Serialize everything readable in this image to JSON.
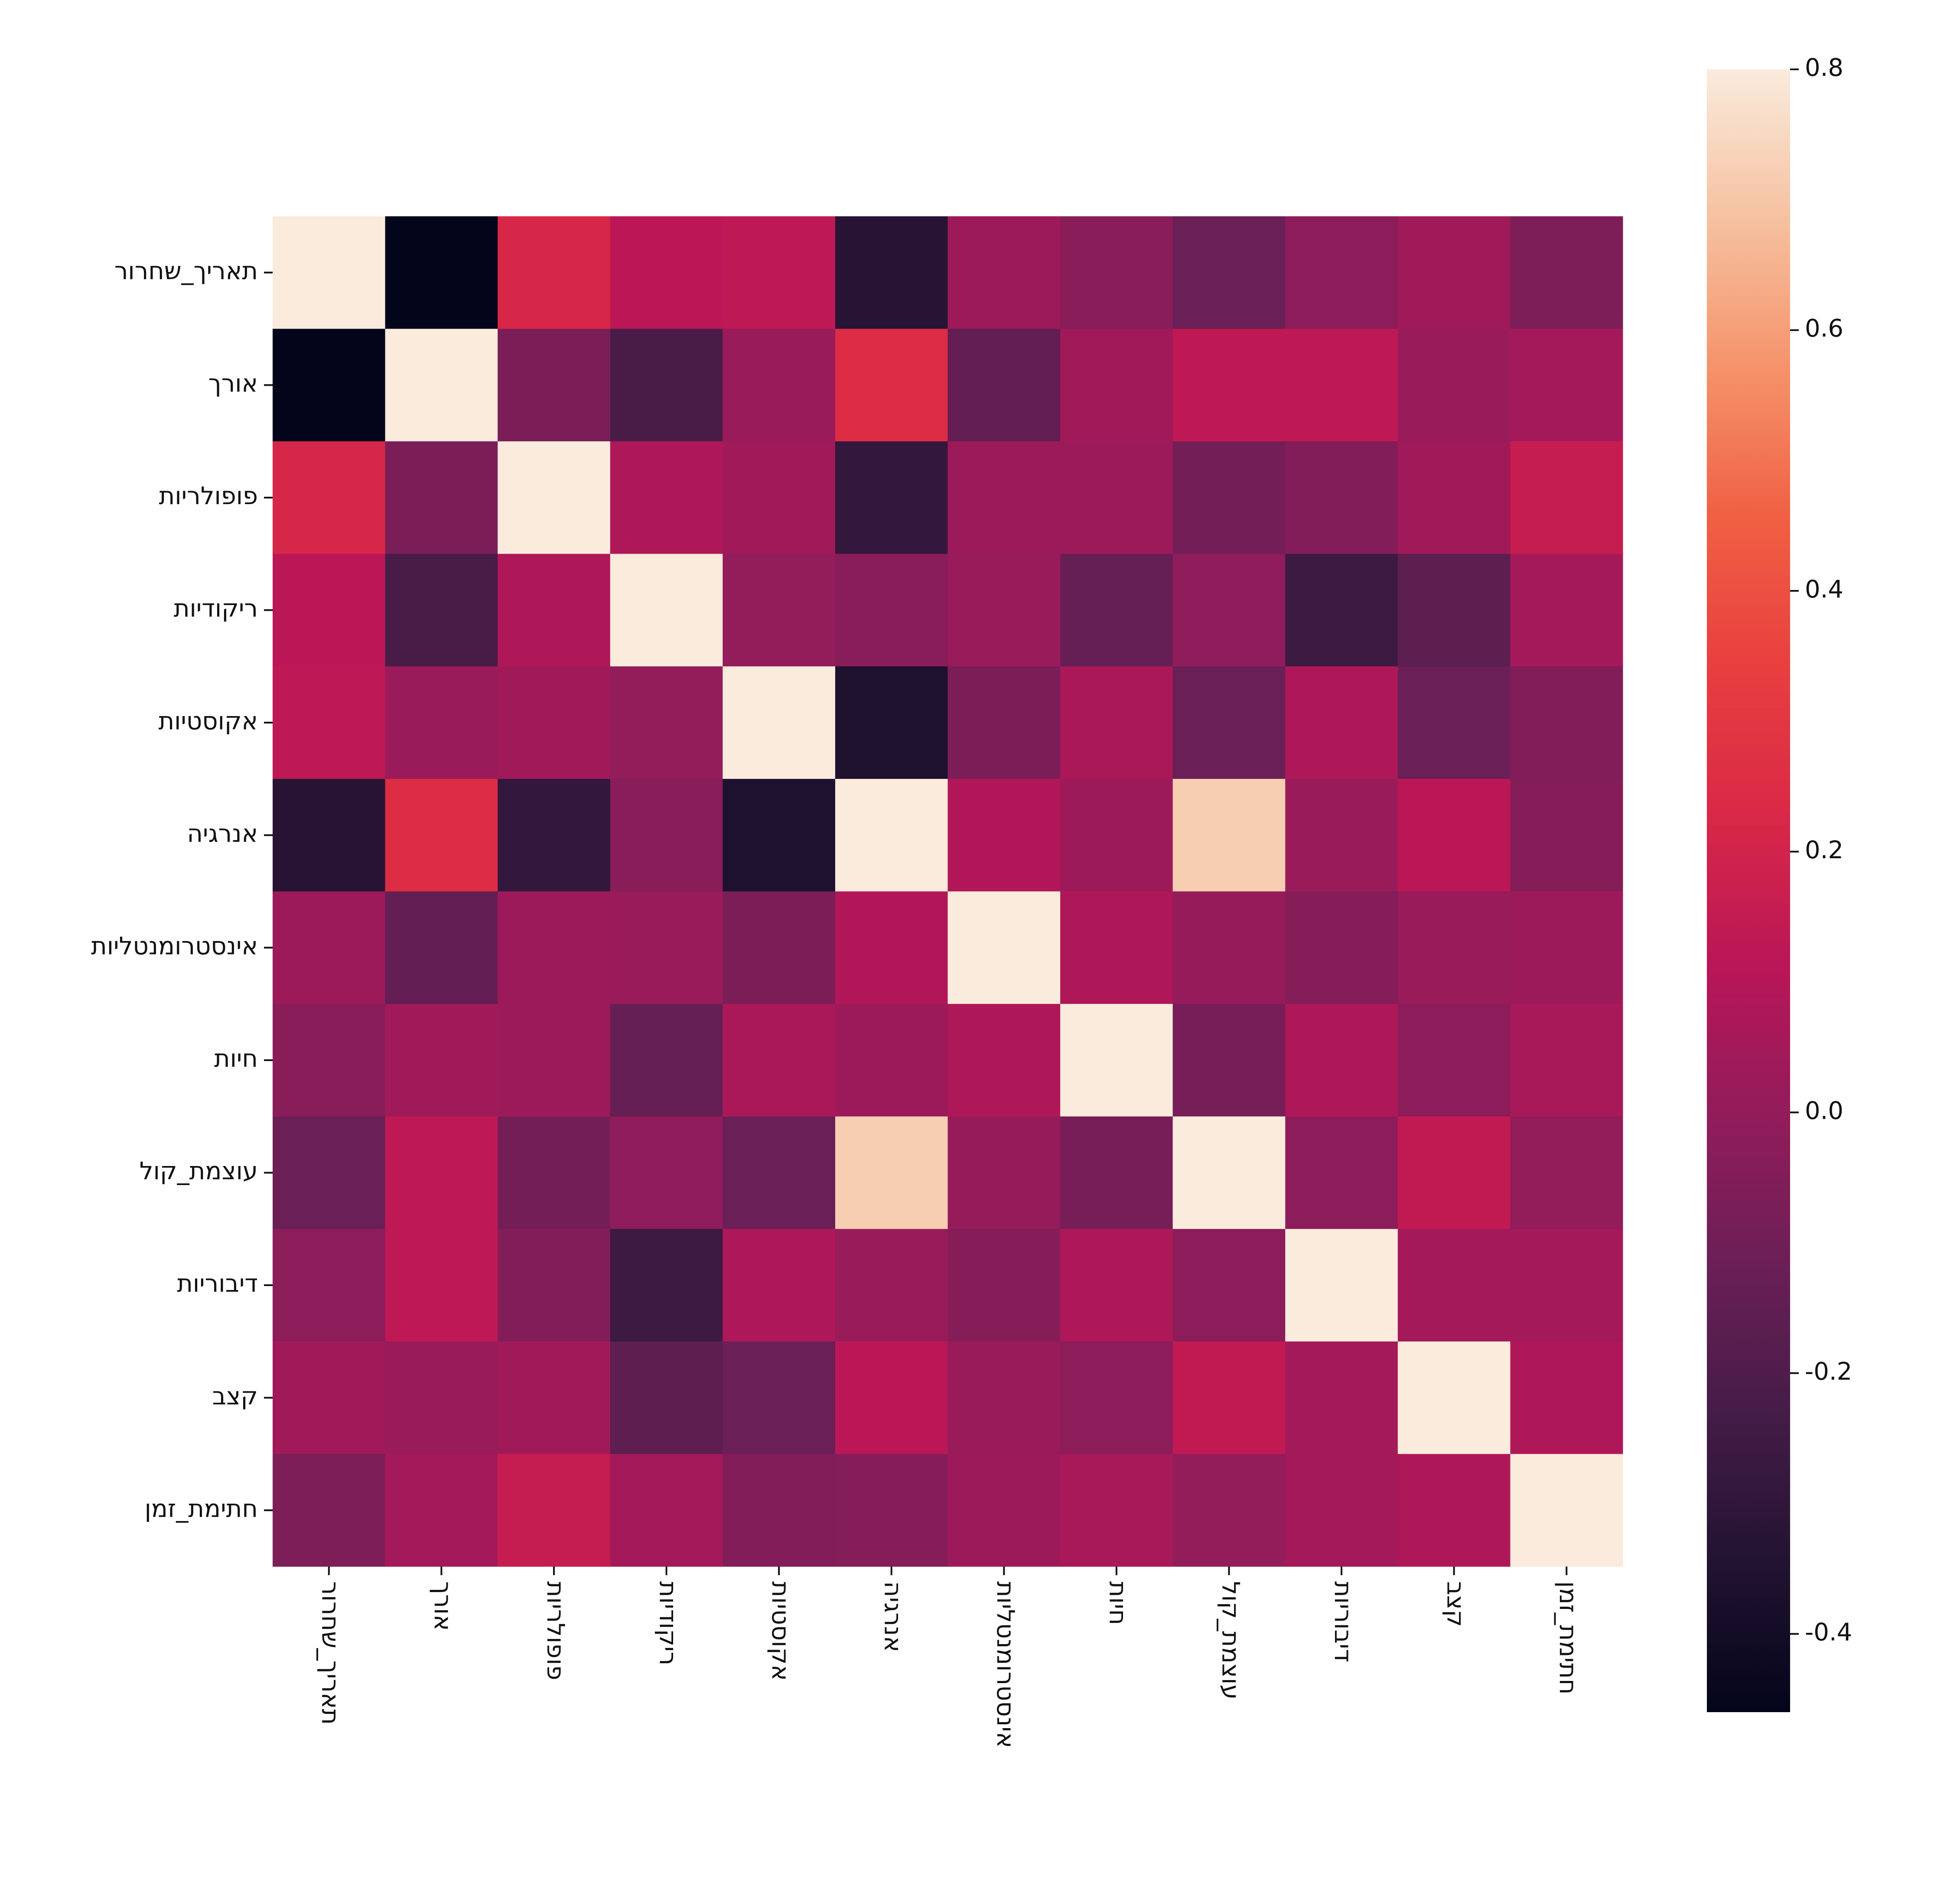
{
  "chart_data": {
    "type": "heatmap",
    "categories": [
      "רורחש_ךיראת",
      "ךרוא",
      "תוירלופופ",
      "תוידוקיר",
      "תויטסוקא",
      "היגרנא",
      "תוילטנמורטסניא",
      "תויח",
      "לוק_תמצוע",
      "תוירוביד",
      "בצק",
      "ןמז_תמיתח"
    ],
    "row_categories": [
      "רורחש_ךיראת",
      "ךרוא",
      "תוירלופופ",
      "תוידוקיר",
      "תויטסוקא",
      "היגרנא",
      "תוילטנמורטסניא",
      "תויח",
      "לוק_תמצוע",
      "תוירוביד",
      "בצק",
      "ןמז_תמיתח"
    ],
    "values": [
      [
        1,
        -0.46,
        0.22,
        0.12,
        0.13,
        -0.33,
        0.03,
        -0.03,
        -0.12,
        -0.02,
        0.04,
        -0.06
      ],
      [
        -0.46,
        1,
        -0.07,
        -0.22,
        0.02,
        0.25,
        -0.14,
        0.04,
        0.13,
        0.13,
        0.02,
        0.05
      ],
      [
        0.22,
        -0.07,
        1,
        0.08,
        0.04,
        -0.29,
        0.03,
        0.03,
        -0.09,
        -0.05,
        0.04,
        0.16
      ],
      [
        0.12,
        -0.22,
        0.08,
        1,
        0.0,
        -0.03,
        0.02,
        -0.13,
        -0.01,
        -0.26,
        -0.16,
        0.05
      ],
      [
        0.13,
        0.02,
        0.04,
        0.0,
        1,
        -0.36,
        -0.07,
        0.07,
        -0.12,
        0.08,
        -0.12,
        -0.05
      ],
      [
        -0.33,
        0.25,
        -0.29,
        -0.03,
        -0.36,
        1,
        0.09,
        0.03,
        0.72,
        0.02,
        0.12,
        -0.04
      ],
      [
        0.03,
        -0.14,
        0.03,
        0.02,
        -0.07,
        0.09,
        1,
        0.08,
        0.01,
        -0.04,
        0.02,
        0.03
      ],
      [
        -0.03,
        0.04,
        0.03,
        -0.13,
        0.07,
        0.03,
        0.08,
        1,
        -0.08,
        0.08,
        -0.02,
        0.06
      ],
      [
        -0.12,
        0.13,
        -0.09,
        -0.01,
        -0.12,
        0.72,
        0.01,
        -0.08,
        1,
        -0.02,
        0.14,
        0.0
      ],
      [
        -0.02,
        0.13,
        -0.05,
        -0.26,
        0.08,
        0.02,
        -0.04,
        0.08,
        -0.02,
        1,
        0.05,
        0.05
      ],
      [
        0.04,
        0.02,
        0.04,
        -0.16,
        -0.12,
        0.12,
        0.02,
        -0.02,
        0.14,
        0.05,
        1,
        0.08
      ],
      [
        -0.06,
        0.05,
        0.16,
        0.05,
        -0.05,
        -0.04,
        0.03,
        0.06,
        0.0,
        0.05,
        0.08,
        1
      ]
    ],
    "zlim": [
      -0.46,
      0.8
    ],
    "zticks": [
      -0.4,
      -0.2,
      {
        "value": 0,
        "label": "0.0"
      },
      0.2,
      0.4,
      0.6,
      0.8
    ],
    "colormap": [
      "#03051a",
      "#221331",
      "#451c47",
      "#6b1f56",
      "#921c5b",
      "#b91657",
      "#d92847",
      "#e83f3f",
      "#f06043",
      "#f5936b",
      "#f6c1a0",
      "#faebdd"
    ]
  }
}
